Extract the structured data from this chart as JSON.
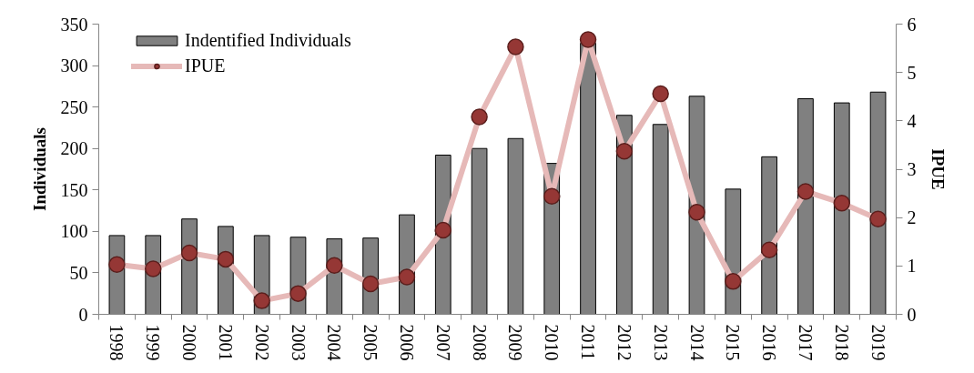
{
  "chart_data": {
    "type": "bar",
    "categories": [
      "1998",
      "1999",
      "2000",
      "2001",
      "2002",
      "2003",
      "2004",
      "2005",
      "2006",
      "2007",
      "2008",
      "2009",
      "2010",
      "2011",
      "2012",
      "2013",
      "2014",
      "2015",
      "2016",
      "2017",
      "2018",
      "2019"
    ],
    "series": [
      {
        "name": "Indentified Individuals",
        "color": "#808080",
        "values": [
          95,
          95,
          115,
          106,
          95,
          93,
          91,
          92,
          120,
          192,
          200,
          212,
          182,
          327,
          240,
          229,
          263,
          151,
          190,
          260,
          255,
          268
        ]
      },
      {
        "name": "IPUE",
        "type": "line",
        "axis": "y2",
        "color": "#e6b9b8",
        "marker": "circle",
        "colors": [
          "#953735",
          "#953735",
          "#953735",
          "#953735",
          "#953735",
          "#953735",
          "#953735",
          "#953735",
          "#953735",
          "#953735",
          "#953735",
          "#953735",
          "#953735",
          "#953735",
          "#953735",
          "#953735",
          "#953735",
          "#953735",
          "#953735",
          "#953735",
          "#953735",
          "#953735"
        ],
        "values": [
          1.03,
          0.94,
          1.27,
          1.14,
          0.28,
          0.43,
          1.01,
          0.63,
          0.77,
          1.74,
          4.08,
          5.53,
          2.44,
          5.68,
          3.37,
          4.56,
          2.11,
          0.68,
          1.33,
          2.54,
          2.3,
          1.97
        ]
      }
    ],
    "ylabel": "Individuals",
    "y2label": "IPUE",
    "ylim": [
      0,
      350
    ],
    "yticks": [
      0,
      50,
      100,
      150,
      200,
      250,
      300,
      350
    ],
    "y2lim": [
      0,
      6
    ],
    "y2ticks": [
      0,
      1,
      2,
      3,
      4,
      5,
      6
    ],
    "legend": "top left",
    "grid": false
  }
}
